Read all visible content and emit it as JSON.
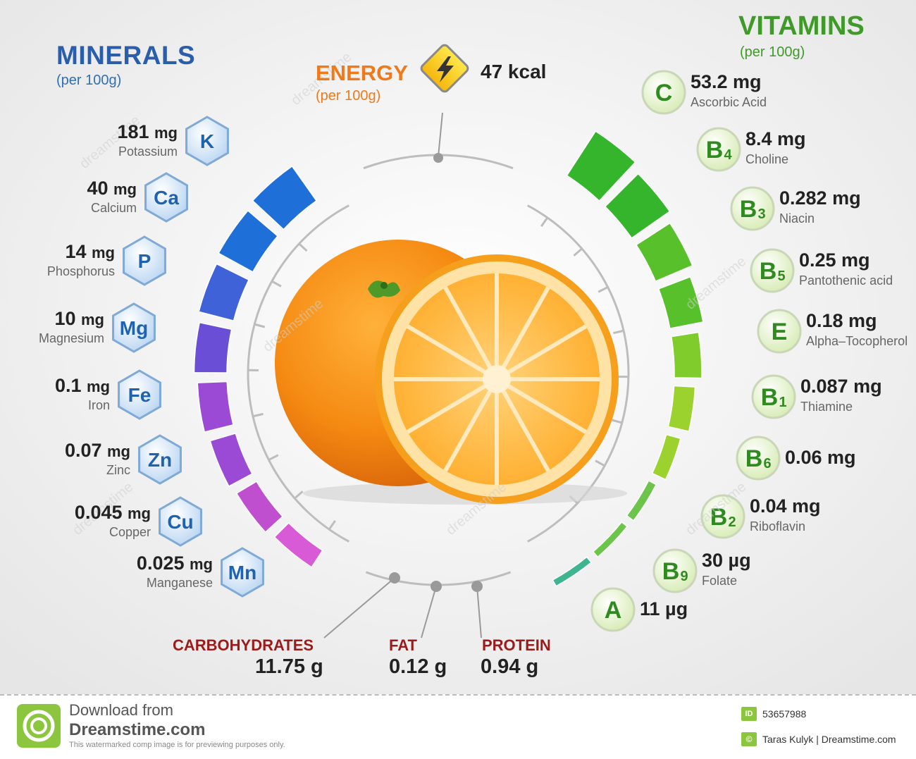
{
  "minerals": {
    "title": "MINERALS",
    "subtitle": "(per 100g)",
    "items": [
      {
        "symbol": "K",
        "value": "181",
        "unit": "mg",
        "name": "Potassium"
      },
      {
        "symbol": "Ca",
        "value": "40",
        "unit": "mg",
        "name": "Calcium"
      },
      {
        "symbol": "P",
        "value": "14",
        "unit": "mg",
        "name": "Phosphorus"
      },
      {
        "symbol": "Mg",
        "value": "10",
        "unit": "mg",
        "name": "Magnesium"
      },
      {
        "symbol": "Fe",
        "value": "0.1",
        "unit": "mg",
        "name": "Iron"
      },
      {
        "symbol": "Zn",
        "value": "0.07",
        "unit": "mg",
        "name": "Zinc"
      },
      {
        "symbol": "Cu",
        "value": "0.045",
        "unit": "mg",
        "name": "Copper"
      },
      {
        "symbol": "Mn",
        "value": "0.025",
        "unit": "mg",
        "name": "Manganese"
      }
    ]
  },
  "vitamins": {
    "title": "VITAMINS",
    "subtitle": "(per 100g)",
    "items": [
      {
        "letter": "C",
        "sub": "",
        "value": "53.2 mg",
        "name": "Ascorbic Acid"
      },
      {
        "letter": "B",
        "sub": "4",
        "value": "8.4 mg",
        "name": "Choline"
      },
      {
        "letter": "B",
        "sub": "3",
        "value": "0.282 mg",
        "name": "Niacin"
      },
      {
        "letter": "B",
        "sub": "5",
        "value": "0.25 mg",
        "name": "Pantothenic acid"
      },
      {
        "letter": "E",
        "sub": "",
        "value": "0.18 mg",
        "name": "Alpha–Tocopherol"
      },
      {
        "letter": "B",
        "sub": "1",
        "value": "0.087 mg",
        "name": "Thiamine"
      },
      {
        "letter": "B",
        "sub": "6",
        "value": "0.06 mg",
        "name": ""
      },
      {
        "letter": "B",
        "sub": "2",
        "value": "0.04 mg",
        "name": "Riboflavin"
      },
      {
        "letter": "B",
        "sub": "9",
        "value": "30 µg",
        "name": "Folate"
      },
      {
        "letter": "A",
        "sub": "",
        "value": "11 µg",
        "name": ""
      }
    ]
  },
  "energy": {
    "title": "ENERGY",
    "subtitle": "(per 100g)",
    "value": "47 kcal"
  },
  "macros": {
    "carbohydrates": {
      "label": "CARBOHYDRATES",
      "value": "11.75 g"
    },
    "fat": {
      "label": "FAT",
      "value": "0.12 g"
    },
    "protein": {
      "label": "PROTEIN",
      "value": "0.94 g"
    }
  },
  "watermark": "dreamstime",
  "footer": {
    "download": "Download from",
    "site": "Dreamstime.com",
    "notice": "This watermarked comp image is for previewing purposes only.",
    "id_label": "ID",
    "id_value": "53657988",
    "credit": "Taras Kulyk | Dreamstime.com"
  },
  "colors": {
    "minerals_gradient": [
      "#1f6fd8",
      "#3f62d8",
      "#6a4fd6",
      "#9a4ad4",
      "#c04fd0",
      "#d85ad6"
    ],
    "vitamins_gradient": [
      "#35b52b",
      "#57c02a",
      "#80cc2c",
      "#9bd22e",
      "#6dc44a",
      "#3eb58f"
    ],
    "energy": "#f07a19",
    "macro_label": "#9b1b1b"
  }
}
